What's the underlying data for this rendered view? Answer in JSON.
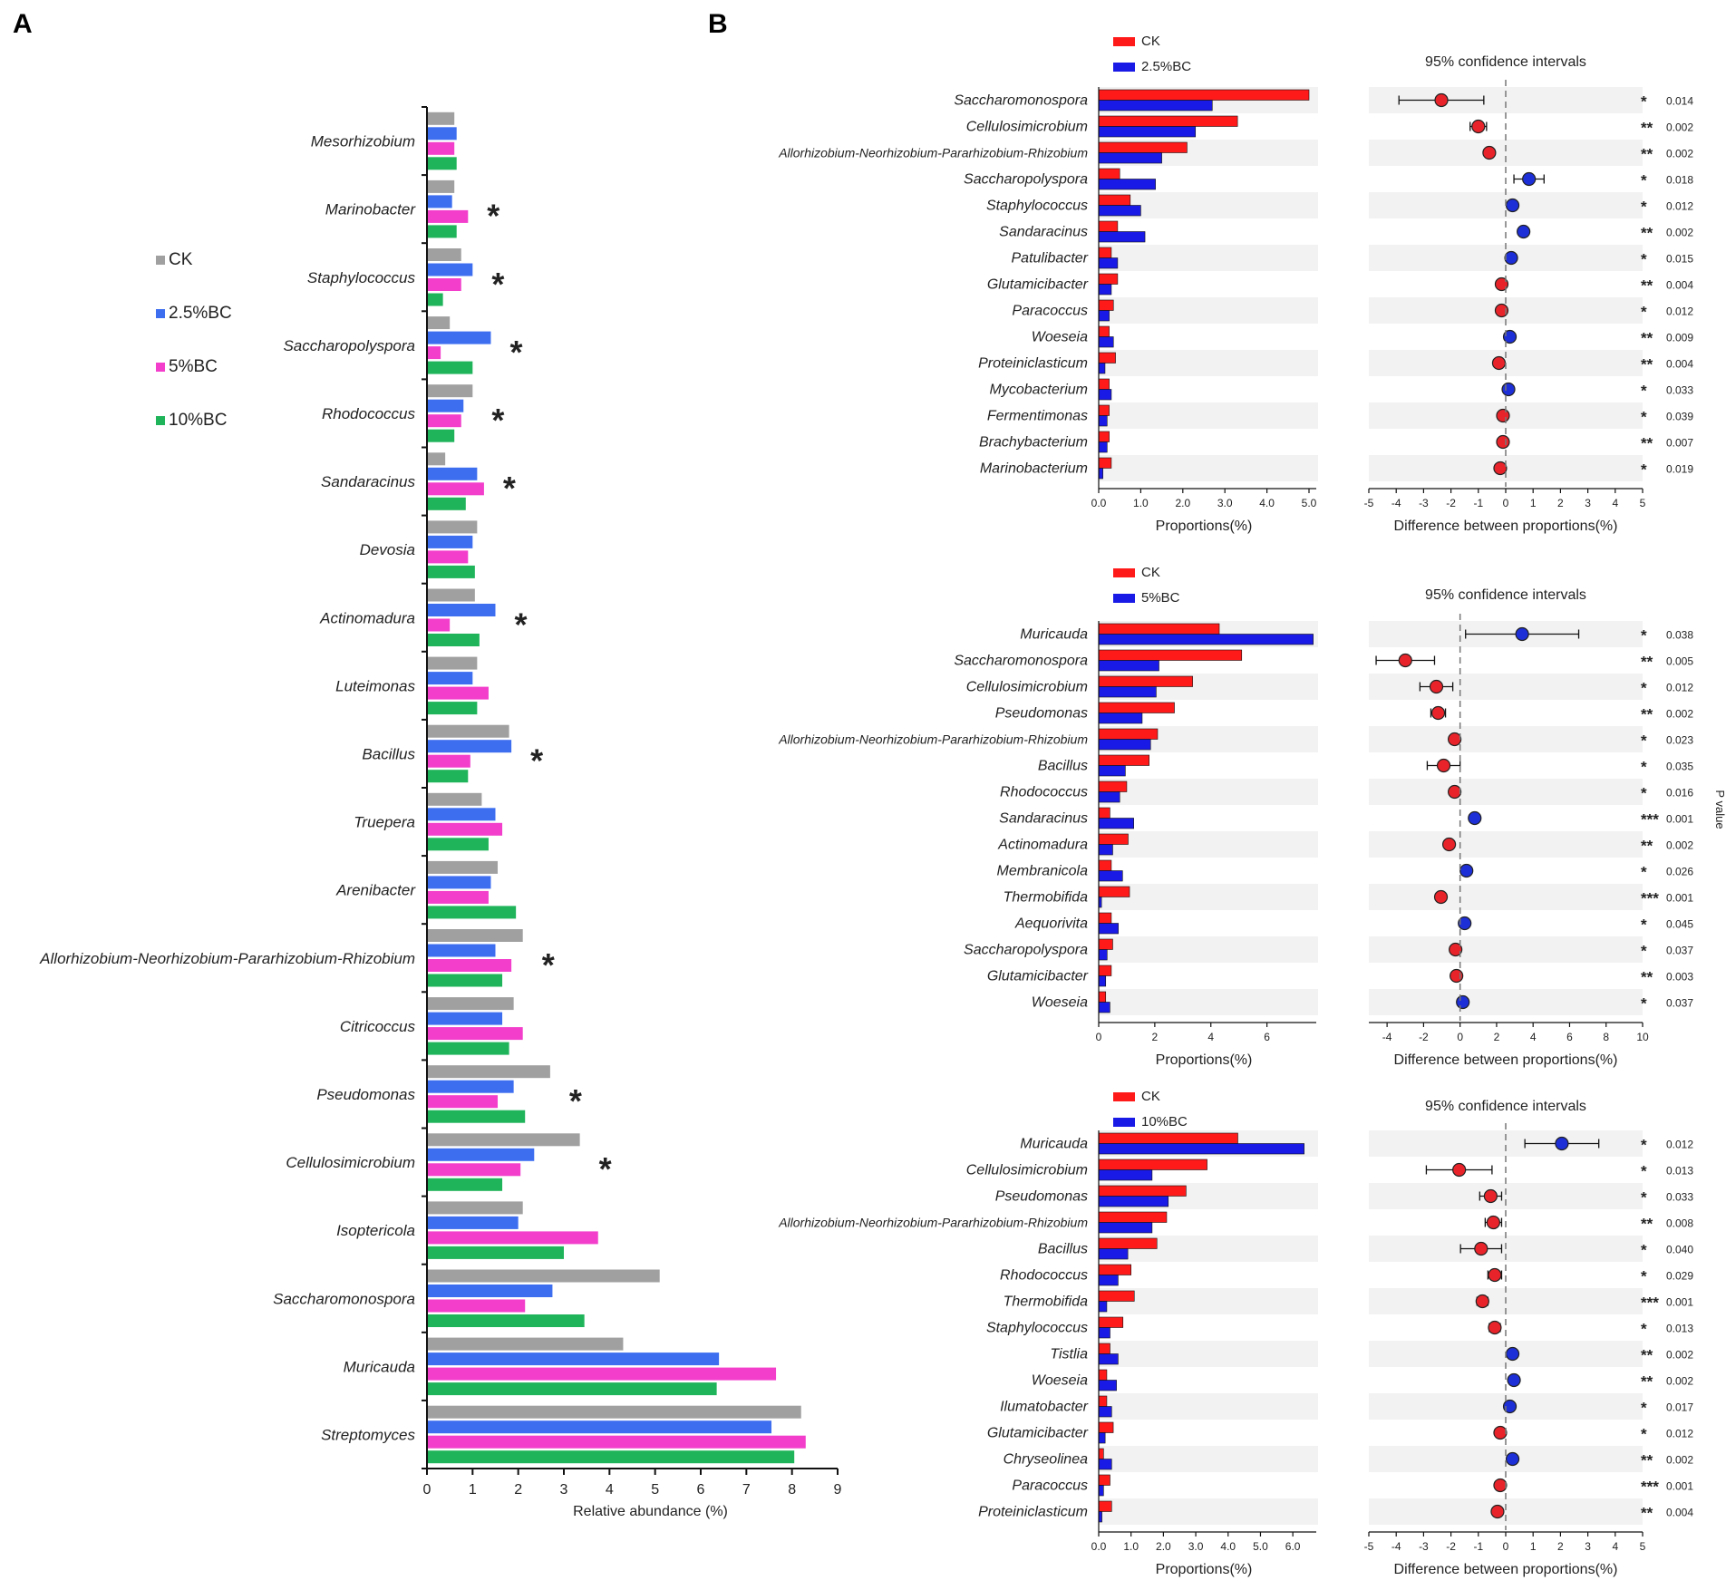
{
  "panels": {
    "a_label": "A",
    "b_label": "B"
  },
  "chart_data": [
    {
      "id": "A",
      "type": "bar",
      "orientation": "horizontal",
      "xlabel": "Relative abundance (%)",
      "xlim": [
        0,
        9
      ],
      "xticks": [
        "0",
        "1",
        "2",
        "3",
        "4",
        "5",
        "6",
        "7",
        "8",
        "9"
      ],
      "legend": [
        "CK",
        "2.5%BC",
        "5%BC",
        "10%BC"
      ],
      "colors": [
        "#a0a0a0",
        "#3e6ef0",
        "#f23ecb",
        "#1fb45a"
      ],
      "sig_color": "#e0161c",
      "categories": [
        "Mesorhizobium",
        "Marinobacter",
        "Staphylococcus",
        "Saccharopolyspora",
        "Rhodococcus",
        "Sandaracinus",
        "Devosia",
        "Actinomadura",
        "Luteimonas",
        "Bacillus",
        "Truepera",
        "Arenibacter",
        "Allorhizobium-Neorhizobium-Pararhizobium-Rhizobium",
        "Citricoccus",
        "Pseudomonas",
        "Cellulosimicrobium",
        "Isoptericola",
        "Saccharomonospora",
        "Muricauda",
        "Streptomyces"
      ],
      "series": [
        {
          "name": "CK",
          "values": [
            0.6,
            0.6,
            0.75,
            0.5,
            1.0,
            0.4,
            1.1,
            1.05,
            1.1,
            1.8,
            1.2,
            1.55,
            2.1,
            1.9,
            2.7,
            3.35,
            2.1,
            5.1,
            4.3,
            8.2
          ]
        },
        {
          "name": "2.5%BC",
          "values": [
            0.65,
            0.55,
            1.0,
            1.4,
            0.8,
            1.1,
            1.0,
            1.5,
            1.0,
            1.85,
            1.5,
            1.4,
            1.5,
            1.65,
            1.9,
            2.35,
            2.0,
            2.75,
            6.4,
            7.55
          ]
        },
        {
          "name": "5%BC",
          "values": [
            0.6,
            0.9,
            0.75,
            0.3,
            0.75,
            1.25,
            0.9,
            0.5,
            1.35,
            0.95,
            1.65,
            1.35,
            1.85,
            2.1,
            1.55,
            2.05,
            3.75,
            2.15,
            7.65,
            8.3
          ]
        },
        {
          "name": "10%BC",
          "values": [
            0.65,
            0.65,
            0.35,
            1.0,
            0.6,
            0.85,
            1.05,
            1.15,
            1.1,
            0.9,
            1.35,
            1.95,
            1.65,
            1.8,
            2.15,
            1.65,
            3.0,
            3.45,
            6.35,
            8.05
          ]
        }
      ],
      "significant": [
        false,
        true,
        true,
        true,
        true,
        true,
        false,
        true,
        false,
        true,
        false,
        false,
        true,
        false,
        true,
        true,
        false,
        false,
        false,
        false
      ],
      "sig_marker": "*"
    },
    {
      "id": "B1",
      "type": "bar+errorbar",
      "legend": [
        "CK",
        "2.5%BC"
      ],
      "colors": [
        "#ff1a1a",
        "#1a1ae6"
      ],
      "left_xlabel": "Proportions(%)",
      "left_xlim": [
        0,
        5.0
      ],
      "left_xticks": [
        0,
        1,
        2,
        3,
        4,
        5
      ],
      "left_tick_labels": [
        "0.0",
        "1.0",
        "2.0",
        "3.0",
        "4.0",
        "5.0"
      ],
      "ci_title": "95% confidence intervals",
      "right_xlabel": "Difference between proportions(%)",
      "right_xlim": [
        -5,
        5
      ],
      "right_xticks": [
        -5,
        -4,
        -3,
        -2,
        -1,
        0,
        1,
        2,
        3,
        4,
        5
      ],
      "categories": [
        "Saccharomonospora",
        "Cellulosimicrobium",
        "Allorhizobium-Neorhizobium-Pararhizobium-Rhizobium",
        "Saccharopolyspora",
        "Staphylococcus",
        "Sandaracinus",
        "Patulibacter",
        "Glutamicibacter",
        "Paracoccus",
        "Woeseia",
        "Proteiniclasticum",
        "Mycobacterium",
        "Fermentimonas",
        "Brachybacterium",
        "Marinobacterium"
      ],
      "group1": [
        5.0,
        3.3,
        2.1,
        0.5,
        0.75,
        0.45,
        0.3,
        0.45,
        0.35,
        0.25,
        0.4,
        0.25,
        0.25,
        0.25,
        0.3
      ],
      "group2": [
        2.7,
        2.3,
        1.5,
        1.35,
        1.0,
        1.1,
        0.45,
        0.3,
        0.25,
        0.35,
        0.15,
        0.3,
        0.2,
        0.2,
        0.1
      ],
      "diff": [
        -2.35,
        -1.0,
        -0.6,
        0.85,
        0.25,
        0.65,
        0.2,
        -0.15,
        -0.15,
        0.15,
        -0.25,
        0.1,
        -0.1,
        -0.1,
        -0.2
      ],
      "ci_low": [
        -3.9,
        -1.3,
        -0.75,
        0.3,
        0.15,
        0.5,
        0.1,
        -0.25,
        -0.25,
        0.05,
        -0.4,
        0.0,
        -0.2,
        -0.2,
        -0.35
      ],
      "ci_high": [
        -0.8,
        -0.7,
        -0.45,
        1.4,
        0.35,
        0.8,
        0.3,
        -0.05,
        -0.05,
        0.25,
        -0.1,
        0.2,
        0.0,
        0.0,
        -0.05
      ],
      "stars": [
        "*",
        "**",
        "**",
        "*",
        "*",
        "**",
        "*",
        "**",
        "*",
        "**",
        "**",
        "*",
        "*",
        "**",
        "*"
      ],
      "p_values": [
        "0.014",
        "0.002",
        "0.002",
        "0.018",
        "0.012",
        "0.002",
        "0.015",
        "0.004",
        "0.012",
        "0.009",
        "0.004",
        "0.033",
        "0.039",
        "0.007",
        "0.019"
      ]
    },
    {
      "id": "B2",
      "type": "bar+errorbar",
      "legend": [
        "CK",
        "5%BC"
      ],
      "colors": [
        "#ff1a1a",
        "#1a1ae6"
      ],
      "left_xlabel": "Proportions(%)",
      "left_xlim": [
        0,
        7.5
      ],
      "left_xticks": [
        0,
        2,
        4,
        6
      ],
      "left_tick_labels": [
        "0",
        "2",
        "4",
        "6"
      ],
      "ci_title": "95% confidence intervals",
      "right_xlabel": "Difference between proportions(%)",
      "right_xlim": [
        -5,
        10
      ],
      "right_xticks": [
        -4,
        -2,
        0,
        2,
        4,
        6,
        8,
        10
      ],
      "categories": [
        "Muricauda",
        "Saccharomonospora",
        "Cellulosimicrobium",
        "Pseudomonas",
        "Allorhizobium-Neorhizobium-Pararhizobium-Rhizobium",
        "Bacillus",
        "Rhodococcus",
        "Sandaracinus",
        "Actinomadura",
        "Membranicola",
        "Thermobifida",
        "Aequorivita",
        "Saccharopolyspora",
        "Glutamicibacter",
        "Woeseia"
      ],
      "group1": [
        4.3,
        5.1,
        3.35,
        2.7,
        2.1,
        1.8,
        1.0,
        0.4,
        1.05,
        0.45,
        1.1,
        0.45,
        0.5,
        0.45,
        0.25
      ],
      "group2": [
        7.65,
        2.15,
        2.05,
        1.55,
        1.85,
        0.95,
        0.75,
        1.25,
        0.5,
        0.85,
        0.1,
        0.7,
        0.3,
        0.25,
        0.4
      ],
      "diff": [
        3.4,
        -3.0,
        -1.3,
        -1.2,
        -0.3,
        -0.9,
        -0.3,
        0.8,
        -0.6,
        0.35,
        -1.05,
        0.25,
        -0.25,
        -0.2,
        0.15
      ],
      "ci_low": [
        0.3,
        -4.6,
        -2.2,
        -1.6,
        -0.5,
        -1.8,
        -0.5,
        0.6,
        -0.85,
        0.1,
        -1.3,
        0.05,
        -0.45,
        -0.4,
        0.0
      ],
      "ci_high": [
        6.5,
        -1.4,
        -0.4,
        -0.8,
        -0.1,
        0.0,
        -0.1,
        1.0,
        -0.35,
        0.6,
        -0.8,
        0.45,
        -0.05,
        0.0,
        0.3
      ],
      "stars": [
        "*",
        "**",
        "*",
        "**",
        "*",
        "*",
        "*",
        "***",
        "**",
        "*",
        "***",
        "*",
        "*",
        "**",
        "*"
      ],
      "p_values": [
        "0.038",
        "0.005",
        "0.012",
        "0.002",
        "0.023",
        "0.035",
        "0.016",
        "0.001",
        "0.002",
        "0.026",
        "0.001",
        "0.045",
        "0.037",
        "0.003",
        "0.037"
      ]
    },
    {
      "id": "B3",
      "type": "bar+errorbar",
      "legend": [
        "CK",
        "10%BC"
      ],
      "colors": [
        "#ff1a1a",
        "#1a1ae6"
      ],
      "left_xlabel": "Proportions(%)",
      "left_xlim": [
        0,
        6.5
      ],
      "left_xticks": [
        0,
        1,
        2,
        3,
        4,
        5,
        6
      ],
      "left_tick_labels": [
        "0.0",
        "1.0",
        "2.0",
        "3.0",
        "4.0",
        "5.0",
        "6.0"
      ],
      "ci_title": "95% confidence intervals",
      "right_xlabel": "Difference between proportions(%)",
      "right_xlim": [
        -5,
        5
      ],
      "right_xticks": [
        -5,
        -4,
        -3,
        -2,
        -1,
        0,
        1,
        2,
        3,
        4,
        5
      ],
      "categories": [
        "Muricauda",
        "Cellulosimicrobium",
        "Pseudomonas",
        "Allorhizobium-Neorhizobium-Pararhizobium-Rhizobium",
        "Bacillus",
        "Rhodococcus",
        "Thermobifida",
        "Staphylococcus",
        "Tistlia",
        "Woeseia",
        "Ilumatobacter",
        "Glutamicibacter",
        "Chryseolinea",
        "Paracoccus",
        "Proteiniclasticum"
      ],
      "group1": [
        4.3,
        3.35,
        2.7,
        2.1,
        1.8,
        1.0,
        1.1,
        0.75,
        0.35,
        0.25,
        0.25,
        0.45,
        0.15,
        0.35,
        0.4
      ],
      "group2": [
        6.35,
        1.65,
        2.15,
        1.65,
        0.9,
        0.6,
        0.25,
        0.35,
        0.6,
        0.55,
        0.4,
        0.2,
        0.4,
        0.15,
        0.1
      ],
      "diff": [
        2.05,
        -1.7,
        -0.55,
        -0.45,
        -0.9,
        -0.4,
        -0.85,
        -0.4,
        0.25,
        0.3,
        0.15,
        -0.2,
        0.25,
        -0.2,
        -0.3
      ],
      "ci_low": [
        0.7,
        -2.9,
        -0.95,
        -0.75,
        -1.65,
        -0.65,
        -1.05,
        -0.6,
        0.1,
        0.15,
        0.05,
        -0.35,
        0.1,
        -0.35,
        -0.45
      ],
      "ci_high": [
        3.4,
        -0.5,
        -0.15,
        -0.15,
        -0.15,
        -0.15,
        -0.65,
        -0.2,
        0.4,
        0.45,
        0.25,
        -0.05,
        0.4,
        -0.05,
        -0.15
      ],
      "stars": [
        "*",
        "*",
        "*",
        "**",
        "*",
        "*",
        "***",
        "*",
        "**",
        "**",
        "*",
        "*",
        "**",
        "***",
        "**"
      ],
      "p_values": [
        "0.012",
        "0.013",
        "0.033",
        "0.008",
        "0.040",
        "0.029",
        "0.001",
        "0.013",
        "0.002",
        "0.002",
        "0.017",
        "0.012",
        "0.002",
        "0.001",
        "0.004"
      ]
    }
  ],
  "p_axis_label": "P value"
}
